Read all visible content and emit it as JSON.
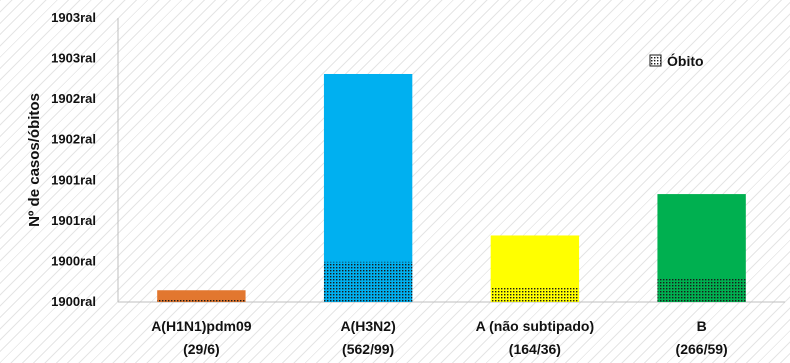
{
  "chart_data": {
    "type": "bar",
    "stacked_overlay": true,
    "ylabel": "Nº de casos/óbitos",
    "y_tick_labels": [
      "1900ral",
      "1900ral",
      "1901ral",
      "1901ral",
      "1902ral",
      "1902ral",
      "1903ral",
      "1903ral"
    ],
    "ylim": [
      0,
      700
    ],
    "grid": false,
    "legend": {
      "position": "top-right",
      "entries": [
        "Óbito"
      ]
    },
    "categories": [
      {
        "line1": "A(H1N1)pdm09",
        "line2": "(29/6)"
      },
      {
        "line1": "A(H3N2)",
        "line2": "(562/99)"
      },
      {
        "line1": "A (não subtipado)",
        "line2": "(164/36)"
      },
      {
        "line1": "B",
        "line2": "(266/59)"
      }
    ],
    "series": [
      {
        "name": "",
        "values": [
          29,
          562,
          164,
          266
        ]
      },
      {
        "name": "Óbito",
        "values": [
          6,
          99,
          36,
          59
        ]
      }
    ],
    "colors": [
      "#E2772F",
      "#00B0F0",
      "#FFFF00",
      "#00B050"
    ],
    "death_pattern_color": "#1a1a1a"
  }
}
